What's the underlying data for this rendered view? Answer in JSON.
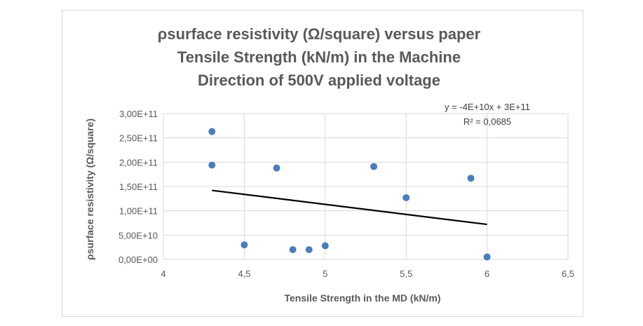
{
  "chart_data": {
    "type": "scatter",
    "title_lines": [
      "ρsurface resistivity (Ω/square) versus paper",
      "Tensile Strength (kN/m) in the Machine",
      "Direction of 500V applied voltage"
    ],
    "xlabel": "Tensile Strength in the MD (kN/m)",
    "ylabel": "ρsurface resistivity (Ω/square)",
    "xlim": [
      4,
      6.5
    ],
    "ylim": [
      0,
      300000000000
    ],
    "xticks": [
      4,
      4.5,
      5,
      5.5,
      6,
      6.5
    ],
    "xtick_labels": [
      "4",
      "4,5",
      "5",
      "5,5",
      "6",
      "6,5"
    ],
    "yticks": [
      0,
      50000000000,
      100000000000,
      150000000000,
      200000000000,
      250000000000,
      300000000000
    ],
    "ytick_labels": [
      "0,00E+00",
      "5,00E+10",
      "1,00E+11",
      "1,50E+11",
      "2,00E+11",
      "2,50E+11",
      "3,00E+11"
    ],
    "grid": true,
    "series": [
      {
        "name": "ρsurface resistivity",
        "color": "#4a7ebb",
        "points": [
          [
            4.3,
            263000000000
          ],
          [
            4.3,
            194000000000
          ],
          [
            4.5,
            30000000000
          ],
          [
            4.7,
            188000000000
          ],
          [
            4.8,
            20000000000
          ],
          [
            4.9,
            20000000000
          ],
          [
            5.0,
            28000000000
          ],
          [
            5.3,
            191000000000
          ],
          [
            5.5,
            127000000000
          ],
          [
            5.9,
            167000000000
          ],
          [
            6.0,
            5000000000
          ]
        ]
      }
    ],
    "trendline": {
      "type": "linear",
      "color": "#000000",
      "x_range": [
        4.3,
        6.0
      ],
      "y_values": [
        142000000000,
        72000000000
      ],
      "equation": "y = -4E+10x + 3E+11",
      "r_squared": "R² = 0,0685"
    }
  }
}
